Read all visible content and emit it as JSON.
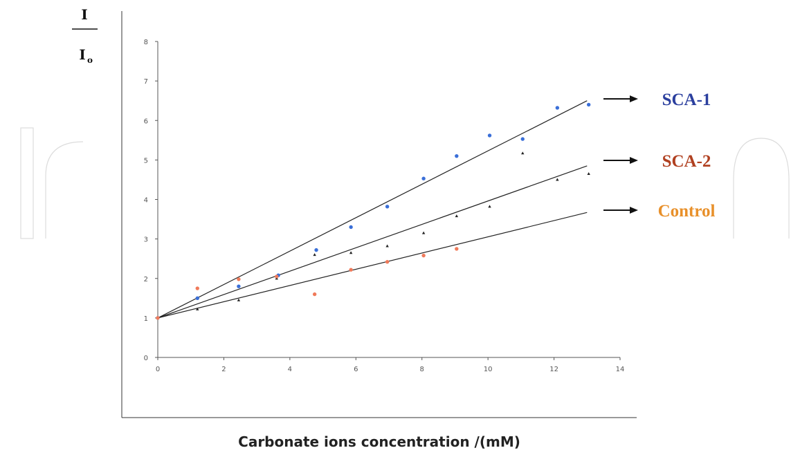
{
  "chart_data": {
    "type": "scatter",
    "xlabel": "Carbonate ions concentration /(mM)",
    "ylabel_numerator": "I",
    "ylabel_denominator": "I",
    "ylabel_denominator_sub": "o",
    "xlim": [
      0,
      14
    ],
    "ylim": [
      0,
      8
    ],
    "xticks": [
      0,
      2,
      4,
      6,
      8,
      10,
      12,
      14
    ],
    "yticks": [
      0,
      1,
      2,
      3,
      4,
      5,
      6,
      7,
      8
    ],
    "grid": false,
    "series": [
      {
        "name": "SCA-1",
        "color": "#3a6fd8",
        "label_color": "#2b3f9e",
        "marker": "circle",
        "x": [
          0,
          1.2,
          2.45,
          3.65,
          4.8,
          5.85,
          6.95,
          8.05,
          9.05,
          10.05,
          11.05,
          12.1,
          13.05
        ],
        "y": [
          1.0,
          1.5,
          1.8,
          2.08,
          2.72,
          3.3,
          3.82,
          4.53,
          5.1,
          5.62,
          5.53,
          6.32,
          6.4
        ],
        "fit": {
          "x": [
            0,
            13
          ],
          "y": [
            1.0,
            6.5
          ]
        }
      },
      {
        "name": "SCA-2",
        "color": "#222222",
        "label_color": "#b04020",
        "marker": "triangle",
        "x": [
          0,
          1.2,
          2.45,
          3.6,
          4.75,
          5.85,
          6.95,
          8.05,
          9.05,
          10.05,
          11.05,
          12.1,
          13.05
        ],
        "y": [
          1.0,
          1.22,
          1.45,
          2.0,
          2.6,
          2.65,
          2.82,
          3.15,
          3.58,
          3.82,
          5.17,
          4.5,
          4.65
        ],
        "fit": {
          "x": [
            0,
            13
          ],
          "y": [
            1.0,
            4.85
          ]
        }
      },
      {
        "name": "Control",
        "color": "#f07a5a",
        "label_color": "#e8902a",
        "marker": "circle",
        "x": [
          0,
          1.2,
          2.45,
          3.6,
          4.75,
          5.85,
          6.95,
          8.05,
          9.05
        ],
        "y": [
          1.0,
          1.75,
          1.98,
          2.05,
          1.6,
          2.22,
          2.42,
          2.58,
          2.75
        ],
        "fit": {
          "x": [
            0,
            13
          ],
          "y": [
            1.0,
            3.67
          ]
        }
      }
    ]
  }
}
